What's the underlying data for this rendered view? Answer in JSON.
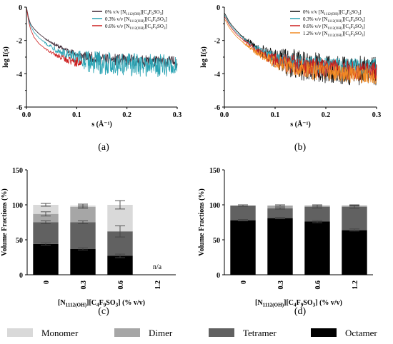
{
  "panel_labels": [
    "(a)",
    "(b)",
    "(c)",
    "(d)"
  ],
  "chart_data": [
    {
      "type": "line",
      "panel": "(a)",
      "xlabel": "s (Å⁻¹)",
      "ylabel": "log I(s)",
      "xlim": [
        0,
        0.3
      ],
      "ylim": [
        -6,
        0
      ],
      "x_ticks": [
        "0.0",
        "0.1",
        "0.2",
        "0.3"
      ],
      "y_ticks": [
        "-6",
        "-4",
        "-2",
        "0"
      ],
      "legend_position": "top-right",
      "series": [
        {
          "name": "0% v/v [N1112(OH)][C4F9SO3]",
          "label_main": "0% v/v [N",
          "label_sub1": "1112(OH)",
          "label_mid": "][C",
          "label_sub2": "4",
          "label_mid2": "F",
          "label_sub3": "9",
          "label_end": "SO",
          "label_sub4": "3",
          "label_close": "]",
          "color": "#3a2230",
          "x": [
            0.0,
            0.004,
            0.008,
            0.015,
            0.025,
            0.04,
            0.06,
            0.08,
            0.1,
            0.12,
            0.15,
            0.2,
            0.25,
            0.3
          ],
          "y": [
            0.0,
            -0.6,
            -1.0,
            -1.3,
            -1.6,
            -1.95,
            -2.3,
            -2.6,
            -2.85,
            -3.0,
            -3.1,
            -3.2,
            -3.25,
            -3.3
          ],
          "noise": 0.35
        },
        {
          "name": "0.3% v/v [N1112(OH)][C4F9SO3]",
          "label_main": "0.3% v/v [N",
          "label_sub1": "1112(OH)",
          "label_mid": "][C",
          "label_sub2": "4",
          "label_mid2": "F",
          "label_sub3": "9",
          "label_end": "SO",
          "label_sub4": "3",
          "label_close": "]",
          "color": "#2aa3b3",
          "x": [
            0.0,
            0.004,
            0.008,
            0.015,
            0.025,
            0.04,
            0.06,
            0.08,
            0.1,
            0.12,
            0.15,
            0.2,
            0.25,
            0.3
          ],
          "y": [
            0.0,
            -0.7,
            -1.1,
            -1.5,
            -1.85,
            -2.2,
            -2.55,
            -2.9,
            -3.1,
            -3.25,
            -3.35,
            -3.45,
            -3.5,
            -3.55
          ],
          "noise": 0.7
        },
        {
          "name": "0.6% v/v [N1112(OH)][C4F9SO3]",
          "label_main": "0.6% v/v [N",
          "label_sub1": "1112(OH)",
          "label_mid": "][C",
          "label_sub2": "4",
          "label_mid2": "F",
          "label_sub3": "9",
          "label_end": "SO",
          "label_sub4": "3",
          "label_close": "]",
          "color": "#cc1f1f",
          "x": [
            0.0,
            0.004,
            0.008,
            0.015,
            0.025,
            0.04,
            0.06,
            0.08,
            0.1,
            0.11
          ],
          "y": [
            0.0,
            -0.8,
            -1.3,
            -1.8,
            -2.2,
            -2.55,
            -2.9,
            -3.15,
            -3.3,
            -3.35
          ],
          "noise": 0.45
        }
      ]
    },
    {
      "type": "line",
      "panel": "(b)",
      "xlabel": "s (Å⁻¹)",
      "ylabel": "log I(s)",
      "xlim": [
        0,
        0.3
      ],
      "ylim": [
        -6,
        0
      ],
      "x_ticks": [
        "0.0",
        "0.1",
        "0.2",
        "0.3"
      ],
      "y_ticks": [
        "-6",
        "-4",
        "-2",
        "0"
      ],
      "legend_position": "top-right",
      "series": [
        {
          "name": "0% v/v [N1112(OH)][C4F9SO3]",
          "label_main": "0% v/v [N",
          "label_sub1": "1112(OH)",
          "label_mid": "][C",
          "label_sub2": "4",
          "label_mid2": "F",
          "label_sub3": "9",
          "label_end": "SO",
          "label_sub4": "3",
          "label_close": "]",
          "color": "#111111",
          "x": [
            0.0,
            0.004,
            0.008,
            0.015,
            0.025,
            0.04,
            0.06,
            0.08,
            0.1,
            0.12,
            0.15,
            0.2,
            0.25,
            0.3
          ],
          "y": [
            -0.35,
            -0.55,
            -0.8,
            -1.1,
            -1.45,
            -1.9,
            -2.35,
            -2.75,
            -3.05,
            -3.3,
            -3.5,
            -3.7,
            -3.8,
            -3.85
          ],
          "noise": 0.9
        },
        {
          "name": "0.3% v/v [N1112(OH)][C4F9SO3]",
          "label_main": "0.3% v/v [N",
          "label_sub1": "1112(OH)",
          "label_mid": "][C",
          "label_sub2": "4",
          "label_mid2": "F",
          "label_sub3": "9",
          "label_end": "SO",
          "label_sub4": "3",
          "label_close": "]",
          "color": "#2aa3b3",
          "x": [
            0.0,
            0.004,
            0.008,
            0.015,
            0.025,
            0.04,
            0.06,
            0.08,
            0.1,
            0.12,
            0.15,
            0.2,
            0.25,
            0.3
          ],
          "y": [
            -0.45,
            -0.65,
            -0.9,
            -1.2,
            -1.55,
            -1.95,
            -2.4,
            -2.8,
            -3.05,
            -3.2,
            -3.35,
            -3.5,
            -3.55,
            -3.6
          ],
          "noise": 0.5
        },
        {
          "name": "0.6% v/v [N1112(OH)][C4F9SO3]",
          "label_main": "0.6% v/v [N",
          "label_sub1": "1112(OH)",
          "label_mid": "][C",
          "label_sub2": "4",
          "label_mid2": "F",
          "label_sub3": "9",
          "label_end": "SO",
          "label_sub4": "3",
          "label_close": "]",
          "color": "#cc1f1f",
          "x": [
            0.0,
            0.004,
            0.008,
            0.015,
            0.025,
            0.04,
            0.06,
            0.08,
            0.1,
            0.12,
            0.15,
            0.2,
            0.25,
            0.3
          ],
          "y": [
            -0.55,
            -0.75,
            -1.0,
            -1.3,
            -1.65,
            -2.05,
            -2.5,
            -2.9,
            -3.15,
            -3.35,
            -3.55,
            -3.7,
            -3.8,
            -3.85
          ],
          "noise": 0.6
        },
        {
          "name": "1.2% v/v [N1112(OH)][C4F9SO3]",
          "label_main": "1.2% v/v [N",
          "label_sub1": "1112(OH)",
          "label_mid": "][C",
          "label_sub2": "4",
          "label_mid2": "F",
          "label_sub3": "9",
          "label_end": "SO",
          "label_sub4": "3",
          "label_close": "]",
          "color": "#f08a24",
          "x": [
            0.0,
            0.004,
            0.008,
            0.015,
            0.025,
            0.04,
            0.06,
            0.08,
            0.1,
            0.12,
            0.15,
            0.2,
            0.25,
            0.3
          ],
          "y": [
            -0.7,
            -0.9,
            -1.15,
            -1.45,
            -1.8,
            -2.2,
            -2.65,
            -3.0,
            -3.3,
            -3.5,
            -3.7,
            -3.9,
            -4.0,
            -4.1
          ],
          "noise": 0.55
        }
      ]
    },
    {
      "type": "bar",
      "stacked": true,
      "panel": "(c)",
      "ylabel": "Volume Fractions (%)",
      "xlabel_main": "[N",
      "xlabel_sub1": "1112(OH)",
      "xlabel_mid": "][C",
      "xlabel_sub2": "4",
      "xlabel_mid2": "F",
      "xlabel_sub3": "9",
      "xlabel_end": "SO",
      "xlabel_sub4": "3",
      "xlabel_close": "] (% v/v)",
      "categories": [
        "0",
        "0.3",
        "0.6",
        "1.2"
      ],
      "ylim": [
        0,
        150
      ],
      "y_ticks": [
        "0",
        "50",
        "100",
        "150"
      ],
      "annotation": "n/a",
      "series": [
        {
          "name": "Octamer",
          "color": "#000000",
          "values": [
            44,
            37,
            27,
            0
          ],
          "err": [
            1.5,
            1.5,
            2.5,
            0
          ]
        },
        {
          "name": "Tetramer",
          "color": "#616161",
          "values": [
            31,
            38,
            35,
            0
          ],
          "err": [
            2,
            2,
            8,
            0
          ]
        },
        {
          "name": "Dimer",
          "color": "#a6a6a6",
          "values": [
            12,
            22,
            0,
            0
          ],
          "err": [
            3,
            2,
            0,
            0
          ]
        },
        {
          "name": "Monomer",
          "color": "#d9d9d9",
          "values": [
            13,
            2,
            38,
            0
          ],
          "err": [
            2,
            2,
            6,
            0
          ]
        }
      ]
    },
    {
      "type": "bar",
      "stacked": true,
      "panel": "(d)",
      "ylabel": "Volume Fractions (%)",
      "xlabel_main": "[N",
      "xlabel_sub1": "1112(OH)",
      "xlabel_mid": "][C",
      "xlabel_sub2": "4",
      "xlabel_mid2": "F",
      "xlabel_sub3": "9",
      "xlabel_end": "SO",
      "xlabel_sub4": "3",
      "xlabel_close": "] (% v/v)",
      "categories": [
        "0",
        "0.3",
        "0.6",
        "1.2"
      ],
      "ylim": [
        0,
        150
      ],
      "y_ticks": [
        "0",
        "50",
        "100",
        "150"
      ],
      "series": [
        {
          "name": "Octamer",
          "color": "#000000",
          "values": [
            78,
            81,
            76,
            64
          ],
          "err": [
            1,
            1,
            1.5,
            1.5
          ]
        },
        {
          "name": "Tetramer",
          "color": "#616161",
          "values": [
            21,
            14,
            21,
            33
          ],
          "err": [
            1,
            1,
            1.5,
            2
          ]
        },
        {
          "name": "Dimer",
          "color": "#a6a6a6",
          "values": [
            0,
            4,
            2,
            2
          ],
          "err": [
            0,
            1,
            1,
            1
          ]
        },
        {
          "name": "Monomer",
          "color": "#d9d9d9",
          "values": [
            0,
            0,
            0,
            0
          ],
          "err": [
            0,
            0,
            0,
            0
          ]
        }
      ]
    }
  ],
  "legend": [
    {
      "name": "Monomer",
      "color": "#d9d9d9"
    },
    {
      "name": "Dimer",
      "color": "#a6a6a6"
    },
    {
      "name": "Tetramer",
      "color": "#616161"
    },
    {
      "name": "Octamer",
      "color": "#000000"
    }
  ]
}
